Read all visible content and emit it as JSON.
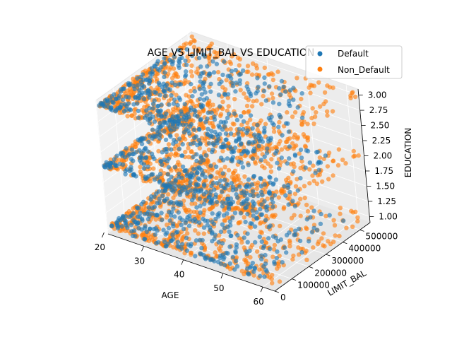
{
  "chart_data": {
    "type": "scatter",
    "projection": "3d",
    "title": "AGE VS LIMIT_BAL VS EDUCATION",
    "xlabel": "AGE",
    "ylabel": "LIMIT_BAL",
    "zlabel": "EDUCATION",
    "x_ticks": [
      "20",
      "30",
      "40",
      "50",
      "60"
    ],
    "y_ticks": [
      "0",
      "100000",
      "200000",
      "300000",
      "400000",
      "500000"
    ],
    "z_ticks": [
      "1.00",
      "1.25",
      "1.50",
      "1.75",
      "2.00",
      "2.25",
      "2.50",
      "2.75",
      "3.00"
    ],
    "xlim": [
      21,
      63
    ],
    "ylim": [
      0,
      560000
    ],
    "zlim": [
      0.9,
      3.1
    ],
    "z_levels": [
      1,
      2,
      3
    ],
    "grid": true,
    "legend_position": "top-right",
    "series": [
      {
        "name": "Default",
        "color": "#1f77b4",
        "z_values": [
          1,
          2,
          3
        ],
        "age_range": [
          21,
          60
        ],
        "limit_bal_range": [
          10000,
          500000
        ]
      },
      {
        "name": "Non_Default",
        "color": "#ff7f0e",
        "z_values": [
          1,
          2,
          3
        ],
        "age_range": [
          21,
          63
        ],
        "limit_bal_range": [
          10000,
          560000
        ]
      }
    ]
  }
}
